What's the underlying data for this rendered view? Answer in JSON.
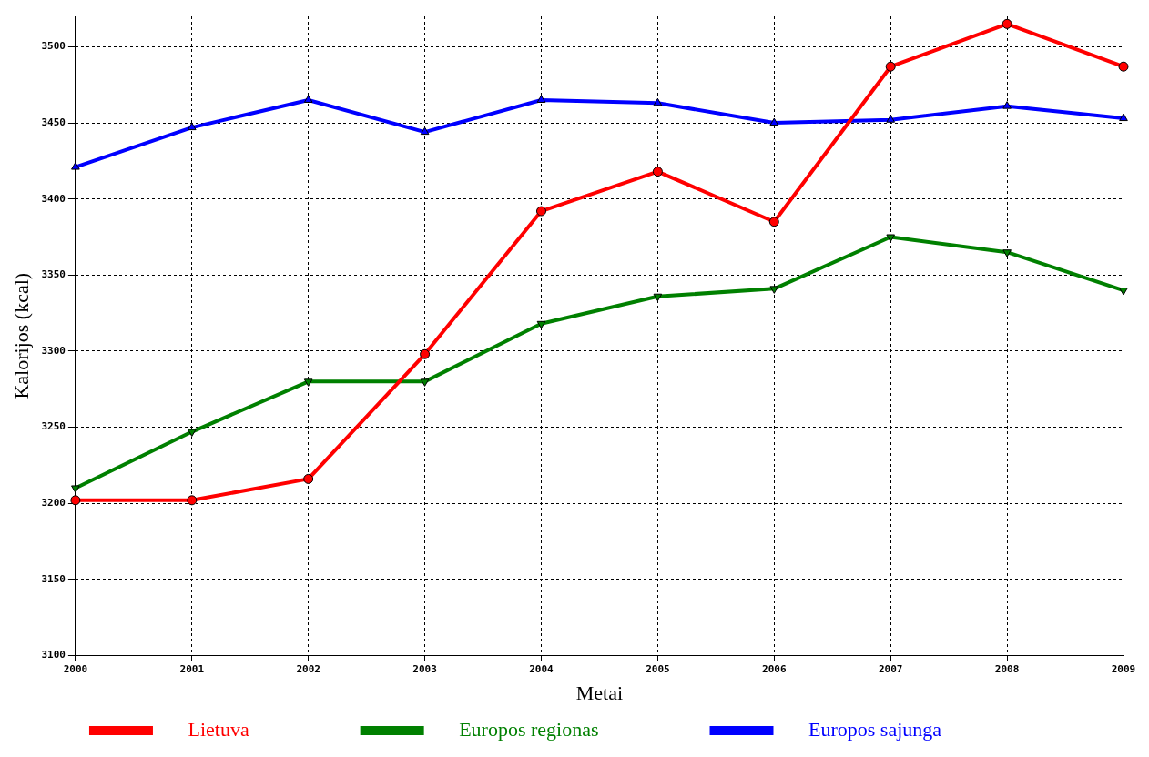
{
  "chart_data": {
    "type": "line",
    "xlabel": "Metai",
    "ylabel": "Kalorijos (kcal)",
    "categories": [
      "2000",
      "2001",
      "2002",
      "2003",
      "2004",
      "2005",
      "2006",
      "2007",
      "2008",
      "2009"
    ],
    "series": [
      {
        "name": "Lietuva",
        "color": "#ff0000",
        "marker": "circle",
        "values": [
          3202,
          3202,
          3216,
          3298,
          3392,
          3418,
          3385,
          3487,
          3515,
          3487
        ]
      },
      {
        "name": "Europos regionas",
        "color": "#008000",
        "marker": "triangle-down",
        "values": [
          3210,
          3247,
          3280,
          3280,
          3318,
          3336,
          3341,
          3375,
          3365,
          3340
        ]
      },
      {
        "name": "Europos sajunga",
        "color": "#0000ff",
        "marker": "triangle",
        "values": [
          3421,
          3447,
          3465,
          3444,
          3465,
          3463,
          3450,
          3452,
          3461,
          3453
        ]
      }
    ],
    "ylim": [
      3100,
      3520
    ],
    "yticks": [
      3100,
      3150,
      3200,
      3250,
      3300,
      3350,
      3400,
      3450,
      3500
    ],
    "grid": true,
    "legend": "bottom",
    "line_style": "solid"
  }
}
